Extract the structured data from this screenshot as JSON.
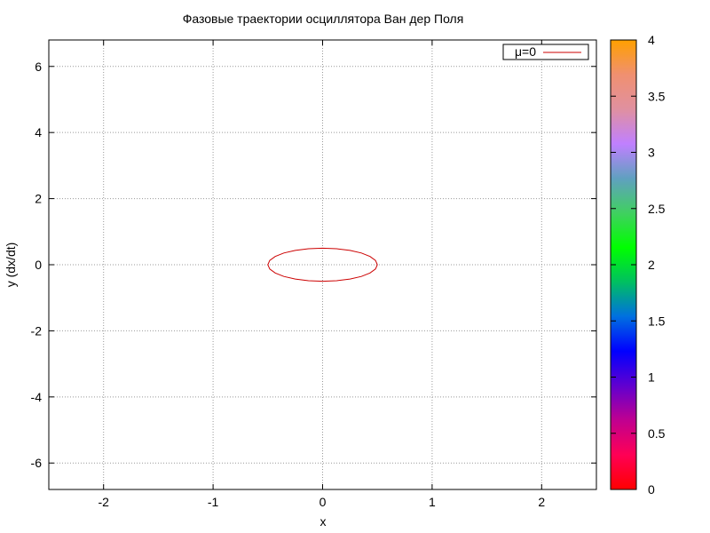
{
  "chart_data": {
    "type": "line",
    "title": "Фазовые траектории осциллятора Ван дер Поля",
    "xlabel": "x",
    "ylabel": "y (dx/dt)",
    "xlim": [
      -2.5,
      2.5
    ],
    "ylim": [
      -6.8,
      6.8
    ],
    "x_ticks": [
      -2,
      -1,
      0,
      1,
      2
    ],
    "y_ticks": [
      -6,
      -4,
      -2,
      0,
      2,
      4,
      6
    ],
    "grid": true,
    "legend_position": "top-right",
    "series": [
      {
        "name": "μ=0",
        "color": "#cc0000",
        "shape": "closed-orbit",
        "points": [
          [
            0.5,
            0.0
          ],
          [
            0.483,
            0.129
          ],
          [
            0.433,
            0.25
          ],
          [
            0.354,
            0.354
          ],
          [
            0.25,
            0.433
          ],
          [
            0.129,
            0.483
          ],
          [
            0.0,
            0.5
          ],
          [
            -0.129,
            0.483
          ],
          [
            -0.25,
            0.433
          ],
          [
            -0.354,
            0.354
          ],
          [
            -0.433,
            0.25
          ],
          [
            -0.483,
            0.129
          ],
          [
            -0.5,
            0.0
          ],
          [
            -0.483,
            -0.129
          ],
          [
            -0.433,
            -0.25
          ],
          [
            -0.354,
            -0.354
          ],
          [
            -0.25,
            -0.433
          ],
          [
            -0.129,
            -0.483
          ],
          [
            0.0,
            -0.5
          ],
          [
            0.129,
            -0.483
          ],
          [
            0.25,
            -0.433
          ],
          [
            0.354,
            -0.354
          ],
          [
            0.433,
            -0.25
          ],
          [
            0.483,
            -0.129
          ],
          [
            0.5,
            0.0
          ]
        ]
      }
    ],
    "colorbar": {
      "range": [
        0,
        4
      ],
      "ticks": [
        "0",
        "0.5",
        "1",
        "1.5",
        "2",
        "2.5",
        "3",
        "3.5",
        "4"
      ],
      "palette": [
        "#ff0000",
        "#ff0055",
        "#c00090",
        "#6000d0",
        "#0000ff",
        "#0070e0",
        "#00c060",
        "#00ff00",
        "#40d060",
        "#60a0c0",
        "#c080ff",
        "#e090a0",
        "#f09070",
        "#ffa000"
      ]
    }
  }
}
